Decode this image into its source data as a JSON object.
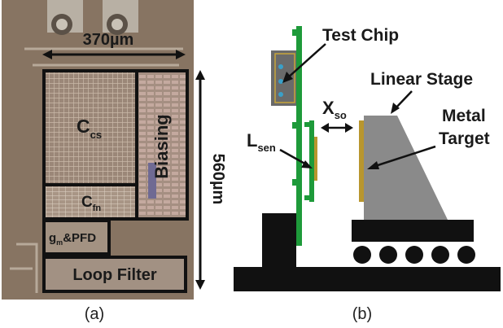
{
  "panel_a": {
    "width_label": "370µm",
    "height_label": "560µm",
    "blocks": {
      "ccs_main": "C",
      "ccs_sub": "cs",
      "cfn_main": "C",
      "cfn_sub": "fn",
      "biasing": "Biasing",
      "gm_main": "g",
      "gm_sub": "m",
      "gm_rest": "&PFD",
      "loop_filter": "Loop Filter"
    },
    "caption": "(a)"
  },
  "panel_b": {
    "test_chip": "Test Chip",
    "linear_stage": "Linear Stage",
    "metal": "Metal",
    "target": "Target",
    "lsen_main": "L",
    "lsen_sub": "sen",
    "xso_main": "X",
    "xso_sub": "so",
    "caption": "(b)"
  },
  "colors": {
    "die": "#8c7a68",
    "pcb_green": "#1e9a3a",
    "stage_gray": "#8a8a8a",
    "metal_gold": "#b8962e",
    "black": "#111111"
  }
}
